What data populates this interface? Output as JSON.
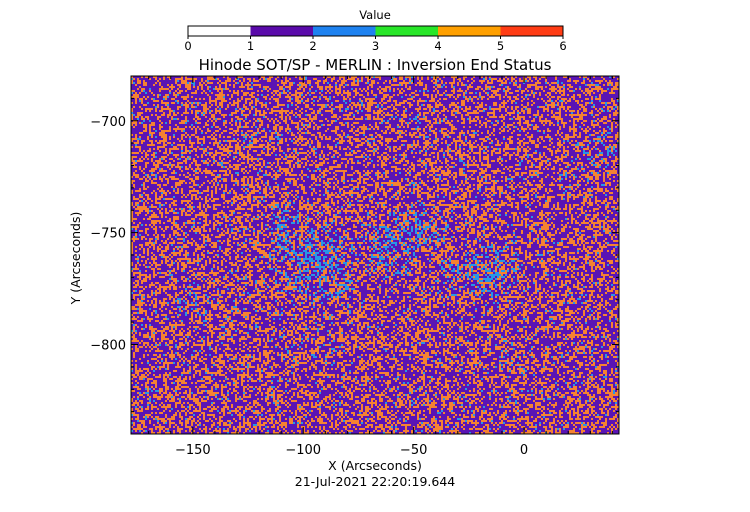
{
  "chart_data": {
    "type": "heatmap",
    "title": "Hinode SOT/SP - MERLIN : Inversion End Status",
    "xlabel": "X (Arcseconds)",
    "ylabel": "Y (Arcseconds)",
    "timestamp": "21-Jul-2021 22:20:19.644",
    "xlim": [
      -178,
      43
    ],
    "ylim": [
      -840,
      -680
    ],
    "x_ticks": [
      -150,
      -100,
      -50,
      0
    ],
    "y_ticks": [
      -700,
      -750,
      -800
    ],
    "colorbar": {
      "title": "Value",
      "range": [
        0,
        6
      ],
      "ticks": [
        0,
        1,
        2,
        3,
        4,
        5,
        6
      ],
      "bands": [
        {
          "from": 0,
          "to": 1,
          "color": "#ffffff"
        },
        {
          "from": 1,
          "to": 2,
          "color": "#5a0aaa"
        },
        {
          "from": 2,
          "to": 3,
          "color": "#1e82f0"
        },
        {
          "from": 3,
          "to": 4,
          "color": "#28e628"
        },
        {
          "from": 4,
          "to": 5,
          "color": "#ffa000"
        },
        {
          "from": 5,
          "to": 6,
          "color": "#ff3c14"
        }
      ]
    },
    "field": {
      "dominant_values": [
        1,
        4,
        2
      ],
      "fractions": [
        0.55,
        0.38,
        0.07
      ],
      "value_colors": {
        "1": "#5a14b4",
        "4": "#f58232",
        "2": "#2896e6"
      }
    }
  }
}
